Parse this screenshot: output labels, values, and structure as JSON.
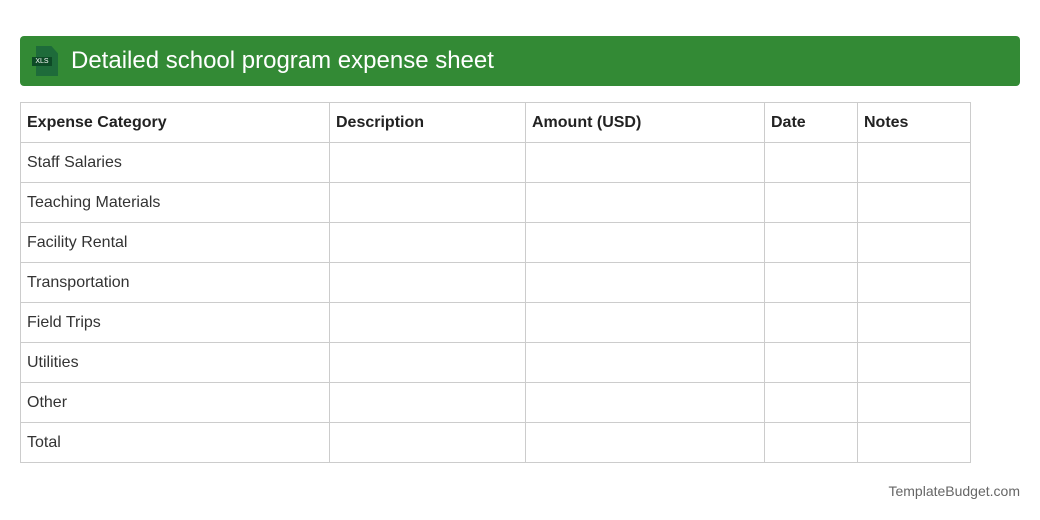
{
  "header": {
    "title": "Detailed school program expense sheet",
    "icon": "xls-file-icon",
    "icon_label": "XLS",
    "color": "#338a35"
  },
  "table": {
    "columns": [
      "Expense Category",
      "Description",
      "Amount (USD)",
      "Date",
      "Notes"
    ],
    "rows": [
      [
        "Staff Salaries",
        "",
        "",
        "",
        ""
      ],
      [
        "Teaching Materials",
        "",
        "",
        "",
        ""
      ],
      [
        "Facility Rental",
        "",
        "",
        "",
        ""
      ],
      [
        "Transportation",
        "",
        "",
        "",
        ""
      ],
      [
        "Field Trips",
        "",
        "",
        "",
        ""
      ],
      [
        "Utilities",
        "",
        "",
        "",
        ""
      ],
      [
        "Other",
        "",
        "",
        "",
        ""
      ],
      [
        "Total",
        "",
        "",
        "",
        ""
      ]
    ]
  },
  "footer": {
    "brand": "TemplateBudget.com"
  }
}
